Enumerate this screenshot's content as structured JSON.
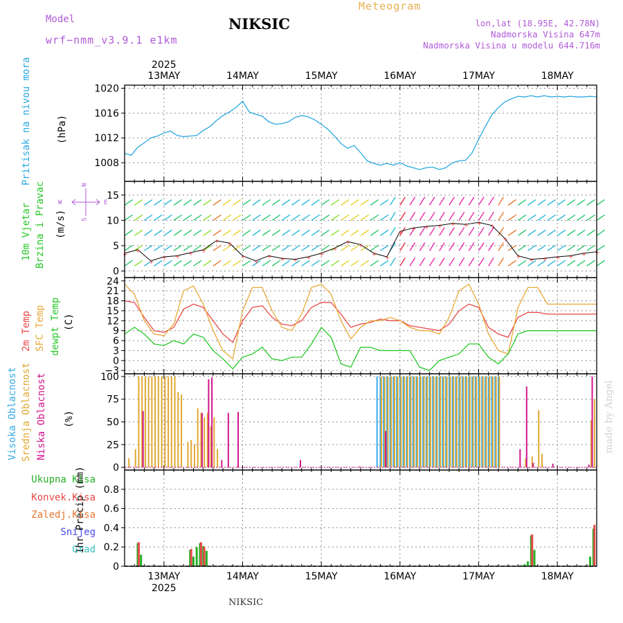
{
  "header": {
    "model_label": "Model",
    "model_version": "wrf−nmm_v3.9.1  e1km",
    "station": "NIKSIC",
    "product": "Meteogram",
    "lonlat": "lon,lat (18.95E, 42.78N)",
    "altitude": "Nadmorska Visina 647m",
    "model_altitude": "Nadmorska Visina u modelu 644.716m"
  },
  "footer": {
    "station": "NIKSIC",
    "credit": "made by Angel"
  },
  "colors": {
    "pressure": "#2aa8e0",
    "temp2m": "#e84848",
    "sfc_temp": "#e8a838",
    "dewpt": "#28c828",
    "cloud_high": "#3aaae8",
    "cloud_mid": "#e0a830",
    "cloud_low": "#d0148c",
    "precip_total": "#28b028",
    "precip_conv": "#e84848",
    "precip_frozen": "#e87830",
    "precip_snow": "#4848e8",
    "precip_grad": "#38c0c0",
    "title_purple": "#b05ad8"
  },
  "chart_data": [
    {
      "type": "line",
      "panel": "pressure",
      "ylabel": "(hPa)",
      "side_labels": [
        "Pritisak na nivou mora"
      ],
      "yticks": [
        1008,
        1012,
        1016,
        1020
      ],
      "ylim": [
        1005,
        1020.5
      ],
      "xlim": [
        0,
        144
      ],
      "x_unit": "hours from 12 MAY 12:00",
      "top_axis": {
        "year": "2025",
        "day_labels": [
          "13MAY",
          "14MAY",
          "15MAY",
          "16MAY",
          "17MAY",
          "18MAY"
        ],
        "day_hours": [
          12,
          36,
          60,
          84,
          108,
          132
        ]
      },
      "series": [
        {
          "key": "pressure",
          "x": [
            0,
            2,
            4,
            6,
            8,
            10,
            12,
            14,
            16,
            18,
            20,
            22,
            24,
            26,
            28,
            30,
            32,
            34,
            36,
            38,
            40,
            42,
            44,
            46,
            48,
            50,
            52,
            54,
            56,
            58,
            60,
            62,
            64,
            66,
            68,
            70,
            72,
            74,
            76,
            78,
            80,
            82,
            84,
            86,
            88,
            90,
            92,
            94,
            96,
            98,
            100,
            102,
            104,
            106,
            108,
            110,
            112,
            114,
            116,
            118,
            120,
            122,
            124,
            126,
            128,
            130,
            132,
            134,
            136,
            138,
            140,
            142,
            144
          ],
          "y": [
            1009.5,
            1009.2,
            1010.5,
            1011.2,
            1012.0,
            1012.3,
            1012.8,
            1013.1,
            1012.4,
            1012.2,
            1012.3,
            1012.4,
            1013.2,
            1013.8,
            1014.8,
            1015.6,
            1016.2,
            1016.9,
            1017.9,
            1016.2,
            1015.8,
            1015.5,
            1014.6,
            1014.2,
            1014.3,
            1014.6,
            1015.3,
            1015.6,
            1015.4,
            1014.9,
            1014.2,
            1013.4,
            1012.3,
            1011.1,
            1010.3,
            1010.8,
            1009.6,
            1008.3,
            1007.9,
            1007.6,
            1007.9,
            1007.6,
            1008.0,
            1007.5,
            1007.2,
            1006.9,
            1007.2,
            1007.3,
            1006.9,
            1007.2,
            1008.0,
            1008.3,
            1008.4,
            1009.6,
            1011.8,
            1013.8,
            1015.7,
            1016.9,
            1017.8,
            1018.3,
            1018.7,
            1018.6,
            1018.8,
            1018.6,
            1018.8,
            1018.6,
            1018.7,
            1018.6,
            1018.7,
            1018.6,
            1018.6,
            1018.7,
            1018.6
          ]
        }
      ]
    },
    {
      "type": "line",
      "panel": "wind",
      "ylabel": "(m/s)",
      "side_labels": [
        "10m Vjetar",
        "Brzina i Pravac"
      ],
      "compass": {
        "n": "N",
        "w": "W",
        "e": "E",
        "s": "S"
      },
      "yticks": [
        0,
        5,
        10,
        15
      ],
      "ylim": [
        -1.3,
        17.7
      ],
      "xlim": [
        0,
        144
      ],
      "series": [
        {
          "key": "wind_speed",
          "x": [
            0,
            4,
            8,
            12,
            16,
            20,
            24,
            28,
            32,
            36,
            40,
            44,
            48,
            52,
            56,
            60,
            64,
            68,
            72,
            76,
            80,
            84,
            88,
            92,
            96,
            100,
            104,
            108,
            112,
            116,
            120,
            124,
            128,
            132,
            136,
            140,
            144
          ],
          "y": [
            3.5,
            4.2,
            2.0,
            2.8,
            3.0,
            3.6,
            4.2,
            6.0,
            5.5,
            3.0,
            2.0,
            3.0,
            2.5,
            2.3,
            2.8,
            3.5,
            4.5,
            5.8,
            5.2,
            3.5,
            2.8,
            7.8,
            8.5,
            8.8,
            9.0,
            9.4,
            9.2,
            9.6,
            9.0,
            6.4,
            3.0,
            2.3,
            2.5,
            2.8,
            3.0,
            3.5,
            3.8
          ]
        }
      ]
    },
    {
      "type": "line",
      "panel": "temperature",
      "ylabel": "(C)",
      "side_labels": [
        "2m Temp",
        "SFC Temp",
        "dewpt Temp"
      ],
      "yticks": [
        -3,
        0,
        3,
        6,
        9,
        12,
        15,
        18,
        21,
        24
      ],
      "ylim": [
        -4,
        25
      ],
      "xlim": [
        0,
        144
      ],
      "series": [
        {
          "key": "temp2m",
          "x": [
            0,
            3,
            6,
            9,
            12,
            15,
            18,
            21,
            24,
            27,
            30,
            33,
            36,
            39,
            42,
            45,
            48,
            51,
            54,
            57,
            60,
            63,
            66,
            69,
            72,
            75,
            78,
            81,
            84,
            87,
            90,
            93,
            96,
            99,
            102,
            105,
            108,
            111,
            114,
            117,
            120,
            123,
            126,
            129,
            132,
            135,
            138,
            141,
            144
          ],
          "y": [
            18,
            17.5,
            13,
            9,
            8.5,
            10,
            15.5,
            17,
            16,
            12,
            8,
            5.5,
            12,
            16,
            16.5,
            13,
            11,
            10.5,
            12,
            16,
            17.5,
            17.5,
            14,
            10,
            11,
            11.5,
            12.5,
            12,
            12,
            10.5,
            10,
            9.5,
            9,
            11,
            15,
            17,
            16,
            10,
            8,
            7,
            13,
            14.5,
            14.5,
            14,
            14,
            14,
            14,
            14,
            14
          ]
        },
        {
          "key": "sfc_temp",
          "x": [
            0,
            3,
            6,
            9,
            12,
            15,
            18,
            21,
            24,
            27,
            30,
            33,
            36,
            39,
            42,
            45,
            48,
            51,
            54,
            57,
            60,
            63,
            66,
            69,
            72,
            75,
            78,
            81,
            84,
            87,
            90,
            93,
            96,
            99,
            102,
            105,
            108,
            111,
            114,
            117,
            120,
            123,
            126,
            129,
            132,
            135,
            138,
            141,
            144
          ],
          "y": [
            23,
            20,
            12,
            8,
            7.5,
            11,
            21,
            22.5,
            17,
            9,
            3,
            0.5,
            15,
            22,
            22,
            15,
            10,
            9,
            14,
            22,
            23,
            20,
            12,
            6.5,
            10,
            12,
            12,
            13,
            12,
            10,
            9,
            9,
            8,
            13,
            21,
            23,
            17,
            8,
            3,
            2,
            16,
            22,
            22,
            17,
            17,
            17,
            17,
            17,
            17
          ]
        },
        {
          "key": "dewpt",
          "x": [
            0,
            3,
            6,
            9,
            12,
            15,
            18,
            21,
            24,
            27,
            30,
            33,
            36,
            39,
            42,
            45,
            48,
            51,
            54,
            57,
            60,
            63,
            66,
            69,
            72,
            75,
            78,
            81,
            84,
            87,
            90,
            93,
            96,
            99,
            102,
            105,
            108,
            111,
            114,
            117,
            120,
            123,
            126,
            129,
            132,
            135,
            138,
            141,
            144
          ],
          "y": [
            8,
            10,
            8,
            5,
            4.5,
            6,
            5,
            8,
            7,
            3,
            0.5,
            -2.5,
            1,
            2,
            4,
            0.5,
            0,
            1,
            1,
            5,
            10,
            7,
            -1,
            -2,
            4,
            4,
            3,
            3,
            3,
            3,
            -2,
            -3,
            0,
            1,
            2,
            5,
            5,
            1,
            -1,
            2,
            8,
            9,
            9,
            9,
            9,
            9,
            9,
            9,
            9
          ]
        }
      ]
    },
    {
      "type": "bar",
      "panel": "clouds",
      "ylabel": "(%)",
      "side_labels": [
        "Visoka Oblacnost",
        "Srednja Oblacnost",
        "Niska Oblacnost"
      ],
      "yticks": [
        0,
        25,
        50,
        75,
        100
      ],
      "ylim": [
        -3,
        103
      ],
      "xlim": [
        0,
        144
      ],
      "series": [
        {
          "key": "cloud_high",
          "x": [
            77,
            78,
            79,
            80,
            81,
            82,
            83,
            84,
            85,
            86,
            87,
            88,
            89,
            90,
            91,
            92,
            93,
            94,
            95,
            96,
            97,
            98,
            99,
            100,
            101,
            102,
            103,
            104,
            105,
            106,
            107,
            108,
            109,
            110,
            111,
            112,
            113,
            114
          ],
          "values": [
            100,
            100,
            100,
            100,
            100,
            100,
            100,
            100,
            100,
            100,
            100,
            100,
            100,
            100,
            100,
            100,
            100,
            100,
            100,
            100,
            100,
            100,
            100,
            100,
            100,
            100,
            100,
            100,
            100,
            100,
            100,
            100,
            100,
            100,
            100,
            100,
            100,
            100
          ]
        },
        {
          "key": "cloud_mid",
          "x": [
            1,
            3,
            4,
            5,
            6,
            7,
            8,
            9,
            10,
            11,
            12,
            13,
            14,
            15,
            16,
            17,
            19,
            20,
            21,
            22,
            23,
            24,
            25,
            26,
            27,
            28,
            29,
            30,
            31,
            32,
            78,
            79,
            80,
            81,
            82,
            83,
            84,
            85,
            86,
            87,
            88,
            89,
            90,
            91,
            92,
            93,
            94,
            95,
            96,
            97,
            98,
            99,
            100,
            101,
            102,
            103,
            104,
            105,
            106,
            107,
            108,
            109,
            110,
            111,
            112,
            113,
            114,
            122,
            124,
            126,
            127,
            142,
            143
          ],
          "values": [
            10,
            20,
            100,
            100,
            100,
            100,
            100,
            100,
            100,
            100,
            100,
            100,
            100,
            100,
            83,
            80,
            28,
            30,
            25,
            65,
            60,
            55,
            60,
            45,
            55,
            20,
            0,
            0,
            0,
            0,
            100,
            100,
            100,
            100,
            100,
            100,
            100,
            100,
            100,
            100,
            100,
            100,
            100,
            100,
            100,
            100,
            100,
            100,
            100,
            100,
            100,
            100,
            100,
            100,
            100,
            100,
            100,
            100,
            100,
            100,
            100,
            100,
            100,
            100,
            100,
            100,
            100,
            10,
            12,
            63,
            15,
            52,
            75
          ]
        },
        {
          "key": "cloud_low",
          "x": [
            5,
            23,
            25,
            26,
            29,
            31,
            34,
            53,
            71,
            79,
            120,
            122,
            124,
            130,
            141,
            142
          ],
          "values": [
            62,
            60,
            97,
            99,
            8,
            60,
            61,
            8,
            1,
            40,
            20,
            89,
            5,
            4,
            3,
            100
          ]
        }
      ]
    },
    {
      "type": "bar",
      "panel": "precip",
      "ylabel": "1hr Precip (mm)",
      "side_labels": [
        "Ukupna Kisa",
        "Konvek.Kisa",
        "Zaledj.Kisa",
        "Snijeg",
        "Grad"
      ],
      "yticks": [
        0,
        0.2,
        0.4,
        0.6,
        0.8
      ],
      "ylim": [
        0,
        1.0
      ],
      "xlim": [
        0,
        144
      ],
      "bottom_axis": {
        "year": "2025",
        "day_labels": [
          "13MAY",
          "14MAY",
          "15MAY",
          "16MAY",
          "17MAY",
          "18MAY"
        ],
        "day_hours": [
          12,
          36,
          60,
          84,
          108,
          132
        ]
      },
      "series": [
        {
          "key": "precip_total",
          "x": [
            4,
            5,
            20,
            21,
            22,
            23,
            24,
            25,
            121,
            122,
            123,
            124,
            125,
            142,
            143
          ],
          "values": [
            0.24,
            0.12,
            0.17,
            0.1,
            0.2,
            0.24,
            0.21,
            0.16,
            0.01,
            0.02,
            0.05,
            0.32,
            0.17,
            0.1,
            0.39
          ]
        },
        {
          "key": "precip_conv",
          "x": [
            4,
            20,
            23,
            24,
            124,
            143
          ],
          "values": [
            0.25,
            0.18,
            0.25,
            0.2,
            0.33,
            0.43
          ]
        }
      ]
    }
  ]
}
